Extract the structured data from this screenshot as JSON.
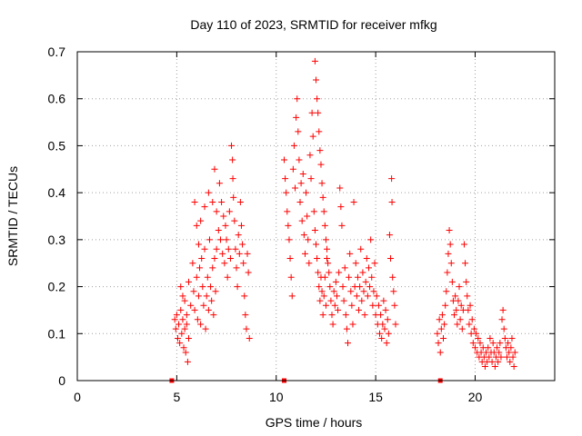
{
  "chart_data": {
    "type": "scatter",
    "title": "Day 110 of 2023, SRMTID for receiver mfkg",
    "xlabel": "GPS time / hours",
    "ylabel": "SRMTID / TECUs",
    "xlim": [
      0,
      24
    ],
    "ylim": [
      0,
      0.7
    ],
    "xticks": [
      0,
      5,
      10,
      15,
      20
    ],
    "xtick_labels": [
      "0",
      "5",
      "10",
      "15",
      "20"
    ],
    "yticks": [
      0,
      0.1,
      0.2,
      0.3,
      0.4,
      0.5,
      0.6,
      0.7
    ],
    "ytick_labels": [
      "0",
      "0.1",
      "0.2",
      "0.3",
      "0.4",
      "0.5",
      "0.6",
      "0.7"
    ],
    "grid": true,
    "marker": "+",
    "color": "#ff0000",
    "series": [
      {
        "name": "SRMTID",
        "points": [
          [
            4.9,
            0.13
          ],
          [
            4.95,
            0.11
          ],
          [
            5.0,
            0.14
          ],
          [
            5.05,
            0.09
          ],
          [
            5.1,
            0.12
          ],
          [
            5.15,
            0.08
          ],
          [
            5.2,
            0.15
          ],
          [
            5.25,
            0.1
          ],
          [
            5.3,
            0.13
          ],
          [
            5.35,
            0.07
          ],
          [
            5.4,
            0.11
          ],
          [
            5.45,
            0.06
          ],
          [
            5.5,
            0.12
          ],
          [
            5.55,
            0.04
          ],
          [
            5.6,
            0.09
          ],
          [
            5.2,
            0.2
          ],
          [
            5.3,
            0.18
          ],
          [
            5.4,
            0.17
          ],
          [
            5.5,
            0.14
          ],
          [
            5.6,
            0.21
          ],
          [
            5.7,
            0.16
          ],
          [
            5.8,
            0.25
          ],
          [
            5.85,
            0.19
          ],
          [
            5.9,
            0.15
          ],
          [
            6.0,
            0.22
          ],
          [
            6.05,
            0.13
          ],
          [
            6.1,
            0.18
          ],
          [
            6.15,
            0.24
          ],
          [
            6.2,
            0.12
          ],
          [
            6.25,
            0.26
          ],
          [
            6.3,
            0.2
          ],
          [
            6.35,
            0.16
          ],
          [
            6.4,
            0.28
          ],
          [
            6.45,
            0.11
          ],
          [
            6.5,
            0.18
          ],
          [
            6.55,
            0.22
          ],
          [
            6.6,
            0.15
          ],
          [
            6.65,
            0.3
          ],
          [
            6.7,
            0.2
          ],
          [
            6.75,
            0.17
          ],
          [
            6.8,
            0.24
          ],
          [
            6.85,
            0.14
          ],
          [
            6.9,
            0.26
          ],
          [
            6.95,
            0.19
          ],
          [
            7.0,
            0.28
          ],
          [
            5.9,
            0.38
          ],
          [
            6.0,
            0.33
          ],
          [
            6.1,
            0.29
          ],
          [
            6.2,
            0.34
          ],
          [
            6.4,
            0.37
          ],
          [
            6.6,
            0.4
          ],
          [
            6.8,
            0.38
          ],
          [
            6.9,
            0.45
          ],
          [
            7.0,
            0.36
          ],
          [
            7.1,
            0.32
          ],
          [
            7.15,
            0.42
          ],
          [
            7.2,
            0.3
          ],
          [
            7.25,
            0.38
          ],
          [
            7.3,
            0.27
          ],
          [
            7.35,
            0.35
          ],
          [
            7.4,
            0.25
          ],
          [
            7.45,
            0.33
          ],
          [
            7.5,
            0.3
          ],
          [
            7.55,
            0.22
          ],
          [
            7.6,
            0.28
          ],
          [
            7.65,
            0.36
          ],
          [
            7.7,
            0.26
          ],
          [
            7.75,
            0.5
          ],
          [
            7.8,
            0.47
          ],
          [
            7.82,
            0.43
          ],
          [
            7.85,
            0.39
          ],
          [
            7.9,
            0.34
          ],
          [
            7.95,
            0.28
          ],
          [
            8.0,
            0.24
          ],
          [
            8.05,
            0.2
          ],
          [
            8.1,
            0.31
          ],
          [
            8.15,
            0.27
          ],
          [
            8.2,
            0.38
          ],
          [
            8.25,
            0.33
          ],
          [
            8.3,
            0.29
          ],
          [
            8.35,
            0.25
          ],
          [
            8.4,
            0.18
          ],
          [
            8.45,
            0.14
          ],
          [
            8.5,
            0.11
          ],
          [
            8.55,
            0.27
          ],
          [
            8.6,
            0.23
          ],
          [
            8.65,
            0.09
          ],
          [
            10.4,
            0.47
          ],
          [
            10.45,
            0.43
          ],
          [
            10.5,
            0.4
          ],
          [
            10.55,
            0.36
          ],
          [
            10.6,
            0.33
          ],
          [
            10.65,
            0.3
          ],
          [
            10.7,
            0.26
          ],
          [
            10.75,
            0.22
          ],
          [
            10.8,
            0.18
          ],
          [
            10.85,
            0.45
          ],
          [
            10.9,
            0.5
          ],
          [
            10.95,
            0.41
          ],
          [
            11.0,
            0.56
          ],
          [
            11.05,
            0.6
          ],
          [
            11.1,
            0.53
          ],
          [
            11.15,
            0.47
          ],
          [
            11.2,
            0.38
          ],
          [
            11.25,
            0.42
          ],
          [
            11.3,
            0.34
          ],
          [
            11.35,
            0.44
          ],
          [
            11.4,
            0.31
          ],
          [
            11.45,
            0.27
          ],
          [
            11.5,
            0.4
          ],
          [
            11.55,
            0.35
          ],
          [
            11.6,
            0.3
          ],
          [
            11.65,
            0.25
          ],
          [
            11.7,
            0.48
          ],
          [
            11.75,
            0.43
          ],
          [
            11.8,
            0.57
          ],
          [
            11.85,
            0.52
          ],
          [
            11.9,
            0.36
          ],
          [
            11.95,
            0.32
          ],
          [
            12.0,
            0.29
          ],
          [
            12.05,
            0.26
          ],
          [
            12.1,
            0.23
          ],
          [
            12.15,
            0.2
          ],
          [
            12.2,
            0.17
          ],
          [
            12.25,
            0.22
          ],
          [
            12.3,
            0.19
          ],
          [
            12.35,
            0.14
          ],
          [
            12.4,
            0.18
          ],
          [
            12.45,
            0.22
          ],
          [
            12.5,
            0.16
          ],
          [
            12.55,
            0.26
          ],
          [
            11.95,
            0.68
          ],
          [
            12.0,
            0.64
          ],
          [
            12.05,
            0.6
          ],
          [
            12.1,
            0.57
          ],
          [
            12.15,
            0.53
          ],
          [
            12.2,
            0.49
          ],
          [
            12.25,
            0.46
          ],
          [
            12.3,
            0.42
          ],
          [
            12.35,
            0.39
          ],
          [
            12.4,
            0.36
          ],
          [
            12.45,
            0.33
          ],
          [
            12.5,
            0.3
          ],
          [
            12.55,
            0.28
          ],
          [
            12.6,
            0.25
          ],
          [
            12.65,
            0.23
          ],
          [
            12.7,
            0.2
          ],
          [
            12.75,
            0.17
          ],
          [
            12.8,
            0.14
          ],
          [
            12.85,
            0.12
          ],
          [
            12.9,
            0.19
          ],
          [
            12.95,
            0.16
          ],
          [
            13.0,
            0.21
          ],
          [
            13.05,
            0.18
          ],
          [
            13.1,
            0.15
          ],
          [
            13.15,
            0.23
          ],
          [
            13.2,
            0.41
          ],
          [
            13.25,
            0.37
          ],
          [
            13.3,
            0.33
          ],
          [
            13.35,
            0.2
          ],
          [
            13.4,
            0.17
          ],
          [
            13.45,
            0.24
          ],
          [
            13.5,
            0.14
          ],
          [
            13.55,
            0.11
          ],
          [
            13.6,
            0.08
          ],
          [
            13.65,
            0.22
          ],
          [
            13.7,
            0.27
          ],
          [
            13.75,
            0.19
          ],
          [
            13.8,
            0.16
          ],
          [
            13.85,
            0.12
          ],
          [
            13.9,
            0.38
          ],
          [
            13.95,
            0.2
          ],
          [
            14.0,
            0.25
          ],
          [
            14.05,
            0.18
          ],
          [
            14.1,
            0.22
          ],
          [
            14.15,
            0.15
          ],
          [
            14.2,
            0.2
          ],
          [
            14.25,
            0.28
          ],
          [
            14.3,
            0.17
          ],
          [
            14.35,
            0.23
          ],
          [
            14.4,
            0.19
          ],
          [
            14.45,
            0.14
          ],
          [
            14.5,
            0.21
          ],
          [
            14.55,
            0.26
          ],
          [
            14.6,
            0.18
          ],
          [
            14.65,
            0.24
          ],
          [
            14.7,
            0.2
          ],
          [
            14.75,
            0.3
          ],
          [
            14.8,
            0.22
          ],
          [
            14.85,
            0.16
          ],
          [
            14.9,
            0.19
          ],
          [
            14.95,
            0.25
          ],
          [
            15.0,
            0.14
          ],
          [
            15.05,
            0.18
          ],
          [
            15.1,
            0.12
          ],
          [
            15.15,
            0.16
          ],
          [
            15.2,
            0.1
          ],
          [
            15.25,
            0.14
          ],
          [
            15.3,
            0.09
          ],
          [
            15.35,
            0.12
          ],
          [
            15.4,
            0.17
          ],
          [
            15.45,
            0.11
          ],
          [
            15.5,
            0.15
          ],
          [
            15.55,
            0.08
          ],
          [
            15.6,
            0.13
          ],
          [
            15.65,
            0.1
          ],
          [
            15.7,
            0.31
          ],
          [
            15.75,
            0.26
          ],
          [
            15.8,
            0.43
          ],
          [
            15.82,
            0.38
          ],
          [
            15.85,
            0.22
          ],
          [
            15.9,
            0.19
          ],
          [
            15.95,
            0.16
          ],
          [
            16.0,
            0.12
          ],
          [
            18.1,
            0.1
          ],
          [
            18.15,
            0.08
          ],
          [
            18.2,
            0.13
          ],
          [
            18.25,
            0.06
          ],
          [
            18.3,
            0.11
          ],
          [
            18.35,
            0.14
          ],
          [
            18.4,
            0.09
          ],
          [
            18.45,
            0.12
          ],
          [
            18.5,
            0.16
          ],
          [
            18.55,
            0.19
          ],
          [
            18.6,
            0.23
          ],
          [
            18.65,
            0.27
          ],
          [
            18.7,
            0.32
          ],
          [
            18.75,
            0.29
          ],
          [
            18.8,
            0.25
          ],
          [
            18.85,
            0.21
          ],
          [
            18.9,
            0.17
          ],
          [
            18.95,
            0.14
          ],
          [
            19.0,
            0.18
          ],
          [
            19.05,
            0.15
          ],
          [
            19.1,
            0.12
          ],
          [
            19.15,
            0.17
          ],
          [
            19.2,
            0.2
          ],
          [
            19.25,
            0.13
          ],
          [
            19.3,
            0.16
          ],
          [
            19.35,
            0.11
          ],
          [
            19.4,
            0.15
          ],
          [
            19.45,
            0.29
          ],
          [
            19.5,
            0.25
          ],
          [
            19.55,
            0.21
          ],
          [
            19.6,
            0.18
          ],
          [
            19.65,
            0.15
          ],
          [
            19.7,
            0.12
          ],
          [
            19.75,
            0.16
          ],
          [
            19.8,
            0.1
          ],
          [
            19.85,
            0.13
          ],
          [
            19.9,
            0.08
          ],
          [
            19.95,
            0.11
          ],
          [
            20.0,
            0.07
          ],
          [
            20.05,
            0.1
          ],
          [
            20.1,
            0.06
          ],
          [
            20.15,
            0.09
          ],
          [
            20.2,
            0.05
          ],
          [
            20.25,
            0.08
          ],
          [
            20.3,
            0.06
          ],
          [
            20.35,
            0.04
          ],
          [
            20.4,
            0.07
          ],
          [
            20.45,
            0.05
          ],
          [
            20.5,
            0.03
          ],
          [
            20.55,
            0.06
          ],
          [
            20.6,
            0.04
          ],
          [
            20.65,
            0.07
          ],
          [
            20.7,
            0.05
          ],
          [
            20.75,
            0.09
          ],
          [
            20.8,
            0.06
          ],
          [
            20.85,
            0.04
          ],
          [
            20.9,
            0.08
          ],
          [
            20.95,
            0.06
          ],
          [
            21.0,
            0.03
          ],
          [
            21.05,
            0.05
          ],
          [
            21.1,
            0.07
          ],
          [
            21.15,
            0.04
          ],
          [
            21.2,
            0.06
          ],
          [
            21.25,
            0.08
          ],
          [
            21.3,
            0.05
          ],
          [
            21.35,
            0.13
          ],
          [
            21.4,
            0.15
          ],
          [
            21.45,
            0.11
          ],
          [
            21.5,
            0.09
          ],
          [
            21.55,
            0.07
          ],
          [
            21.6,
            0.05
          ],
          [
            21.65,
            0.08
          ],
          [
            21.7,
            0.06
          ],
          [
            21.75,
            0.04
          ],
          [
            21.8,
            0.07
          ],
          [
            21.85,
            0.09
          ],
          [
            21.9,
            0.05
          ],
          [
            21.95,
            0.03
          ],
          [
            22.0,
            0.06
          ]
        ]
      },
      {
        "name": "data-gap-markers",
        "marker": "square",
        "points": [
          [
            4.75,
            0.0
          ],
          [
            10.4,
            0.0
          ],
          [
            18.25,
            0.0
          ]
        ]
      }
    ]
  }
}
